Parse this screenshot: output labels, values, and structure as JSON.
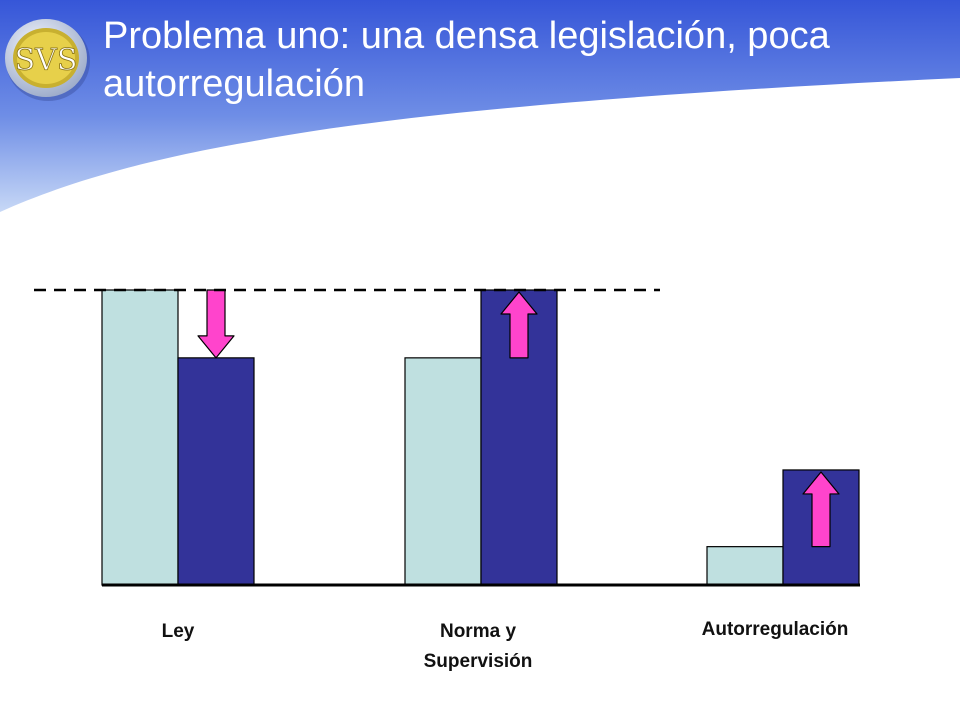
{
  "slide": {
    "title": "Problema uno: una densa legislación, poca autorregulación",
    "logo_text": "SVS",
    "header_color": "#3a5bd9"
  },
  "chart_data": {
    "type": "bar",
    "categories": [
      "Ley",
      "Norma y\nSupervisión",
      "Autorregulación"
    ],
    "series": [
      {
        "values": [
          100,
          77,
          13
        ],
        "color": "#bfe0e0"
      },
      {
        "values": [
          77,
          100,
          39
        ],
        "color": "#333399"
      }
    ],
    "arrows": [
      "down",
      "up",
      "up"
    ],
    "arrow_color": "#ff44cc",
    "reference_line": 100,
    "ylim": [
      0,
      100
    ],
    "grid": false,
    "legend": "none"
  }
}
